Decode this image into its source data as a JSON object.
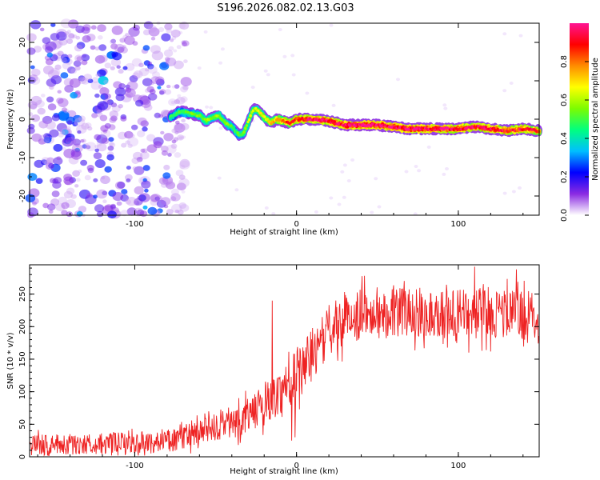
{
  "title": "S196.2026.082.02.13.G03",
  "chart_data": [
    {
      "type": "heatmap",
      "xlabel": "Height of straight line (km)",
      "ylabel": "Frequency (Hz)",
      "xlim": [
        -165,
        150
      ],
      "ylim": [
        -25,
        25
      ],
      "x_ticks": [
        -100,
        0,
        100
      ],
      "y_ticks": [
        -20,
        -10,
        0,
        10,
        20
      ],
      "colorbar": {
        "label": "Normalized spectral amplitude",
        "range": [
          0,
          1
        ],
        "ticks": [
          0.0,
          0.2,
          0.4,
          0.6,
          0.8
        ],
        "colormap": [
          "#ffffff",
          "#8a2be2",
          "#0000ff",
          "#00bfff",
          "#00ff7f",
          "#7cfc00",
          "#ffff00",
          "#ff8c00",
          "#ff0000",
          "#ff1493"
        ]
      },
      "noise_region_km": [
        -165,
        -80
      ],
      "noise_amplitude": 0.15,
      "ridge": {
        "x_km": [
          -78,
          -72,
          -66,
          -60,
          -56,
          -52,
          -48,
          -44,
          -40,
          -36,
          -33,
          -30,
          -27,
          -24,
          -20,
          -16,
          -12,
          -8,
          -4,
          0,
          10,
          20,
          30,
          40,
          50,
          60,
          70,
          80,
          90,
          100,
          110,
          120,
          130,
          140,
          150
        ],
        "freq_hz": [
          0.5,
          2,
          1.5,
          1,
          -0.5,
          0.5,
          1,
          -1,
          -2,
          -4,
          -4,
          -1,
          2.5,
          2.5,
          0.5,
          -1,
          0,
          -0.5,
          -1,
          0,
          0,
          -0.5,
          -1.5,
          -1.5,
          -1.5,
          -2,
          -2.5,
          -2.5,
          -2.5,
          -2.5,
          -2,
          -2.5,
          -3,
          -2.5,
          -3
        ],
        "amplitude": [
          0.35,
          0.4,
          0.4,
          0.45,
          0.45,
          0.45,
          0.45,
          0.45,
          0.4,
          0.4,
          0.45,
          0.5,
          0.5,
          0.5,
          0.55,
          0.6,
          0.65,
          0.7,
          0.75,
          0.8,
          0.85,
          0.85,
          0.9,
          0.92,
          0.92,
          0.9,
          0.9,
          0.88,
          0.88,
          0.85,
          0.85,
          0.85,
          0.8,
          0.8,
          0.78
        ]
      }
    },
    {
      "type": "line",
      "xlabel": "Height of straight line (km)",
      "ylabel": "SNR (10 * v/v)",
      "xlim": [
        -165,
        150
      ],
      "ylim": [
        0,
        295
      ],
      "x_ticks": [
        -100,
        0,
        100
      ],
      "y_ticks": [
        0,
        50,
        100,
        150,
        200,
        250
      ],
      "color": "#ee2222",
      "trend": {
        "x_km": [
          -165,
          -120,
          -90,
          -70,
          -50,
          -35,
          -20,
          -10,
          -3,
          5,
          15,
          25,
          40,
          60,
          80,
          100,
          120,
          150
        ],
        "snr": [
          18,
          20,
          22,
          28,
          45,
          55,
          80,
          100,
          120,
          145,
          175,
          205,
          220,
          225,
          220,
          218,
          222,
          215
        ]
      },
      "noise_band": 30,
      "spikes": [
        {
          "x": -15,
          "y": 240
        },
        {
          "x": -3,
          "y": 25
        },
        {
          "x": -1,
          "y": 30
        },
        {
          "x": 110,
          "y": 292
        },
        {
          "x": 42,
          "y": 278
        },
        {
          "x": 136,
          "y": 288
        }
      ]
    }
  ]
}
